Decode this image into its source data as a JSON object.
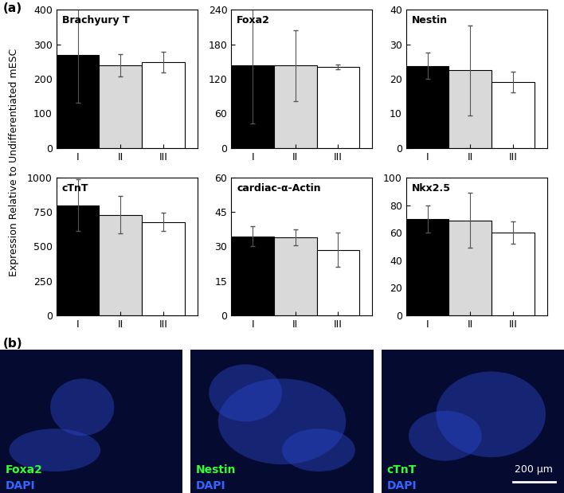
{
  "chart_data": [
    {
      "type": "bar",
      "title": "Brachyury T",
      "categories": [
        "I",
        "II",
        "III"
      ],
      "values": [
        270,
        240,
        248
      ],
      "errors": [
        140,
        32,
        30
      ],
      "colors": [
        "#000000",
        "#d9d9d9",
        "#ffffff"
      ],
      "ylim": [
        0,
        400
      ],
      "yticks": [
        0,
        100,
        200,
        300,
        400
      ]
    },
    {
      "type": "bar",
      "title": "Foxa2",
      "categories": [
        "I",
        "II",
        "III"
      ],
      "values": [
        143,
        143,
        141
      ],
      "errors": [
        100,
        62,
        4
      ],
      "colors": [
        "#000000",
        "#d9d9d9",
        "#ffffff"
      ],
      "ylim": [
        0,
        240
      ],
      "yticks": [
        0,
        60,
        120,
        180,
        240
      ]
    },
    {
      "type": "bar",
      "title": "Nestin",
      "categories": [
        "I",
        "II",
        "III"
      ],
      "values": [
        23.8,
        22.5,
        19
      ],
      "errors": [
        3.8,
        13,
        3
      ],
      "colors": [
        "#000000",
        "#d9d9d9",
        "#ffffff"
      ],
      "ylim": [
        0,
        40
      ],
      "yticks": [
        0,
        10,
        20,
        30,
        40
      ]
    },
    {
      "type": "bar",
      "title": "cTnT",
      "categories": [
        "I",
        "II",
        "III"
      ],
      "values": [
        800,
        730,
        678
      ],
      "errors": [
        190,
        135,
        65
      ],
      "colors": [
        "#000000",
        "#d9d9d9",
        "#ffffff"
      ],
      "ylim": [
        0,
        1000
      ],
      "yticks": [
        0,
        250,
        500,
        750,
        1000
      ]
    },
    {
      "type": "bar",
      "title": "cardiac-α-Actin",
      "categories": [
        "I",
        "II",
        "III"
      ],
      "values": [
        34.5,
        34,
        28.5
      ],
      "errors": [
        4.5,
        3.5,
        7.5
      ],
      "colors": [
        "#000000",
        "#d9d9d9",
        "#ffffff"
      ],
      "ylim": [
        0,
        60
      ],
      "yticks": [
        0,
        15,
        30,
        45,
        60
      ]
    },
    {
      "type": "bar",
      "title": "Nkx2.5",
      "categories": [
        "I",
        "II",
        "III"
      ],
      "values": [
        70,
        69,
        60
      ],
      "errors": [
        10,
        20,
        8
      ],
      "colors": [
        "#000000",
        "#d9d9d9",
        "#ffffff"
      ],
      "ylim": [
        0,
        100
      ],
      "yticks": [
        0,
        20,
        40,
        60,
        80,
        100
      ]
    }
  ],
  "ylabel": "Expression Relative to Undifferentiated mESC",
  "panel_labels": [
    "(a)",
    "(b)"
  ],
  "images": [
    {
      "labels": [
        {
          "text": "Foxa2",
          "color": "#33ff33"
        },
        {
          "text": "DAPI",
          "color": "#3366ff"
        }
      ]
    },
    {
      "labels": [
        {
          "text": "Nestin",
          "color": "#33ff33"
        },
        {
          "text": "DAPI",
          "color": "#3366ff"
        }
      ]
    },
    {
      "labels": [
        {
          "text": "cTnT",
          "color": "#33ff33"
        },
        {
          "text": "DAPI",
          "color": "#3366ff"
        }
      ],
      "scale_bar": "200 µm"
    }
  ]
}
